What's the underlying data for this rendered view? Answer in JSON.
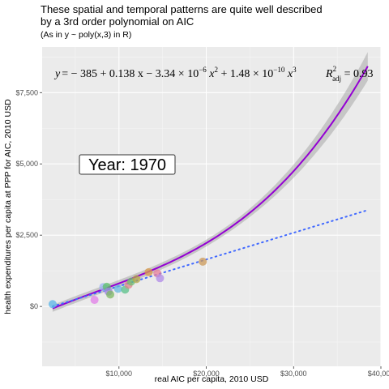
{
  "header": {
    "title": "These spatial and temporal patterns are quite well described\nby a 3rd order polynomial on AIC",
    "subtitle": "(As in y ~ poly(x,3) in R)"
  },
  "annotation": {
    "year_label": "Year: 1970",
    "eq_y": "y",
    "eq_body": "= − 385 + 0.138 x − 3.34 × 10",
    "eq_e1": "−6",
    "eq_x2": " x",
    "eq_p2": "2",
    "eq_mid": " + 1.48 × 10",
    "eq_e2": "−10",
    "eq_x3": " x",
    "eq_p3": "3",
    "eq_r": "R",
    "eq_r2": "2",
    "eq_adj": "adj",
    "eq_val": " = 0.93"
  },
  "chart_data": {
    "type": "scatter",
    "xlabel": "real AIC per capita, 2010 USD",
    "ylabel": "health expenditures per capita at PPP for AIC, 2010 USD",
    "xlim": [
      1200,
      40000
    ],
    "ylim": [
      -2100,
      9100
    ],
    "x_ticks": [
      10000,
      20000,
      30000,
      40000
    ],
    "x_tick_labels": [
      "$10,000",
      "$20,000",
      "$30,000",
      "$40,000"
    ],
    "y_ticks": [
      0,
      2500,
      5000,
      7500
    ],
    "y_tick_labels": [
      "$0",
      "$2,500",
      "$5,000",
      "$7,500"
    ],
    "grid": true,
    "points": [
      {
        "x": 2400,
        "y": 80,
        "color": "#5ab4e8"
      },
      {
        "x": 7200,
        "y": 230,
        "color": "#e27de8"
      },
      {
        "x": 8200,
        "y": 680,
        "color": "#9bb4f0"
      },
      {
        "x": 8600,
        "y": 690,
        "color": "#5bc06a"
      },
      {
        "x": 8800,
        "y": 520,
        "color": "#9f7fe8"
      },
      {
        "x": 9000,
        "y": 420,
        "color": "#7cb860"
      },
      {
        "x": 9900,
        "y": 620,
        "color": "#66b8e0"
      },
      {
        "x": 10700,
        "y": 590,
        "color": "#58c088"
      },
      {
        "x": 11100,
        "y": 760,
        "color": "#e0828a"
      },
      {
        "x": 11400,
        "y": 870,
        "color": "#6cc070"
      },
      {
        "x": 12000,
        "y": 960,
        "color": "#b4a848"
      },
      {
        "x": 13400,
        "y": 1200,
        "color": "#d99a4a"
      },
      {
        "x": 14400,
        "y": 1160,
        "color": "#e87d9a"
      },
      {
        "x": 14700,
        "y": 990,
        "color": "#b08ae8"
      },
      {
        "x": 19600,
        "y": 1570,
        "color": "#cc9a58"
      }
    ],
    "series": [
      {
        "type": "poly3",
        "coef": [
          -385,
          0.138,
          -3.34e-06,
          1.48e-10
        ],
        "color": "#9400d3",
        "style": "solid",
        "ci": true
      },
      {
        "type": "linear",
        "x": [
          2400,
          38500
        ],
        "y": [
          0,
          3380
        ],
        "color": "#4169ff",
        "style": "dotted"
      }
    ]
  }
}
